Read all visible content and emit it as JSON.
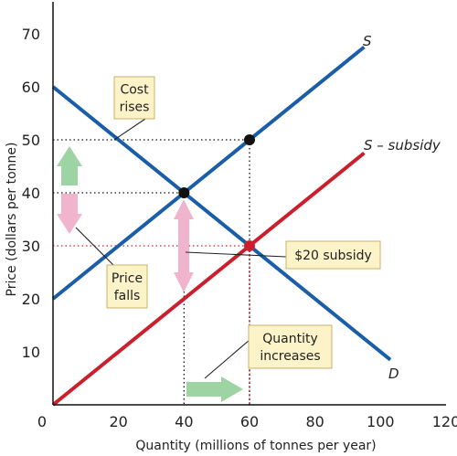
{
  "chart_data": {
    "type": "line",
    "xlabel": "Quantity (millions of tonnes per year)",
    "ylabel": "Price (dollars per tonne)",
    "xlim": [
      0,
      120
    ],
    "ylim": [
      0,
      75
    ],
    "x_ticks": [
      {
        "label": "0",
        "value": 0
      },
      {
        "label": "20",
        "value": 20
      },
      {
        "label": "40",
        "value": 40
      },
      {
        "label": "60",
        "value": 60,
        "highlight": true
      },
      {
        "label": "80",
        "value": 80
      },
      {
        "label": "100",
        "value": 100
      },
      {
        "label": "120",
        "value": 120
      }
    ],
    "y_ticks": [
      {
        "label": "10",
        "value": 10
      },
      {
        "label": "20",
        "value": 20
      },
      {
        "label": "30",
        "value": 30,
        "highlight": true
      },
      {
        "label": "40",
        "value": 40
      },
      {
        "label": "50",
        "value": 50
      },
      {
        "label": "60",
        "value": 60
      },
      {
        "label": "70",
        "value": 70
      }
    ],
    "series": [
      {
        "name": "S",
        "color": "#1a5ea8",
        "x": [
          0,
          95
        ],
        "y": [
          20,
          67.5
        ]
      },
      {
        "name": "S – subsidy",
        "color": "#cc1f2d",
        "x": [
          0,
          95
        ],
        "y": [
          0,
          47.5
        ]
      },
      {
        "name": "D",
        "color": "#1a5ea8",
        "x": [
          0,
          103
        ],
        "y": [
          60,
          8.5
        ]
      }
    ],
    "points": [
      {
        "x": 40,
        "y": 40,
        "color": "#111111"
      },
      {
        "x": 60,
        "y": 50,
        "color": "#111111"
      },
      {
        "x": 60,
        "y": 30,
        "color": "#cc1f2d"
      }
    ],
    "guides": [
      {
        "from": [
          0,
          50
        ],
        "to": [
          60,
          50
        ],
        "color": "#111111"
      },
      {
        "from": [
          60,
          50
        ],
        "to": [
          60,
          0
        ],
        "color": "#111111"
      },
      {
        "from": [
          0,
          40
        ],
        "to": [
          40,
          40
        ],
        "color": "#111111"
      },
      {
        "from": [
          40,
          40
        ],
        "to": [
          40,
          0
        ],
        "color": "#111111"
      },
      {
        "from": [
          0,
          30
        ],
        "to": [
          60,
          30
        ],
        "color": "#cc1f2d"
      },
      {
        "from": [
          60,
          30
        ],
        "to": [
          60,
          0
        ],
        "color": "#cc1f2d"
      }
    ],
    "annotations": [
      {
        "name": "cost-rises-box",
        "lines": [
          "Cost",
          "rises"
        ]
      },
      {
        "name": "price-falls-box",
        "lines": [
          "Price",
          "falls"
        ]
      },
      {
        "name": "subsidy-box",
        "lines": [
          "$20 subsidy"
        ]
      },
      {
        "name": "quantity-increases-box",
        "lines": [
          "Quantity",
          "increases"
        ]
      }
    ],
    "colors": {
      "supply": "#1a5ea8",
      "subsidy": "#cc1f2d",
      "highlight_text": "#cc1f2d",
      "box_fill": "#fdf3c8",
      "box_border": "#c9b06a",
      "arrow_green": "#9ed3a4",
      "arrow_pink": "#f0b5cc"
    },
    "grid": false,
    "legend": "none"
  }
}
